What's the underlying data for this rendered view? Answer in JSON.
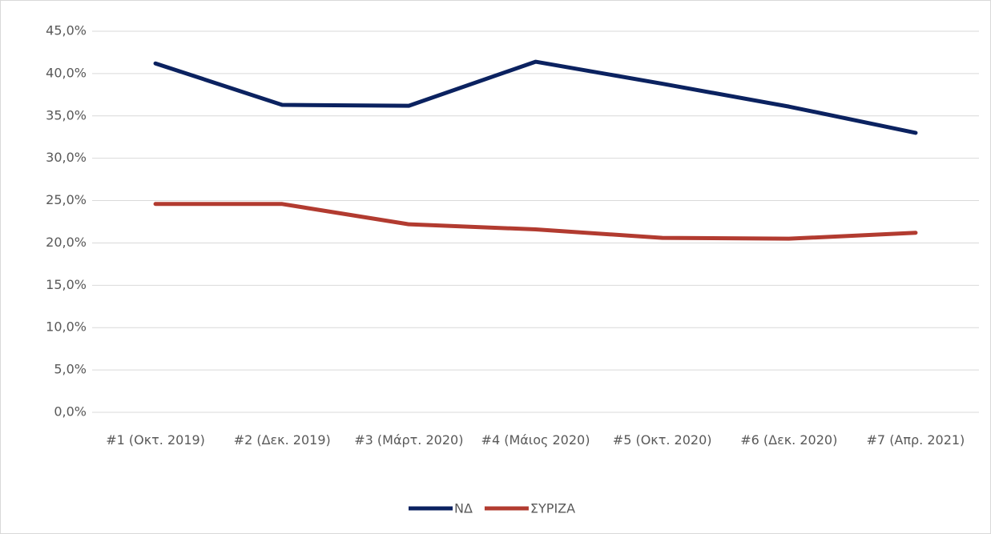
{
  "chart_data": {
    "type": "line",
    "categories": [
      "#1 (Οκτ. 2019)",
      "#2 (Δεκ. 2019)",
      "#3 (Μάρτ. 2020)",
      "#4 (Μάιος 2020)",
      "#5 (Οκτ. 2020)",
      "#6 (Δεκ. 2020)",
      "#7 (Απρ. 2021)"
    ],
    "series": [
      {
        "name": "ΝΔ",
        "color": "#0b2260",
        "values": [
          41.2,
          36.3,
          36.2,
          41.4,
          38.8,
          36.1,
          33.0
        ]
      },
      {
        "name": "ΣΥΡΙΖΑ",
        "color": "#b23b30",
        "values": [
          24.6,
          24.6,
          22.2,
          21.6,
          20.6,
          20.5,
          21.2
        ]
      }
    ],
    "ylim": [
      0,
      45
    ],
    "yticks": [
      {
        "value": 0,
        "label": "0,0%"
      },
      {
        "value": 5,
        "label": "5,0%"
      },
      {
        "value": 10,
        "label": "10,0%"
      },
      {
        "value": 15,
        "label": "15,0%"
      },
      {
        "value": 20,
        "label": "20,0%"
      },
      {
        "value": 25,
        "label": "25,0%"
      },
      {
        "value": 30,
        "label": "30,0%"
      },
      {
        "value": 35,
        "label": "35,0%"
      },
      {
        "value": 40,
        "label": "40,0%"
      },
      {
        "value": 45,
        "label": "45,0%"
      }
    ],
    "grid": true,
    "legend": "bottom"
  }
}
